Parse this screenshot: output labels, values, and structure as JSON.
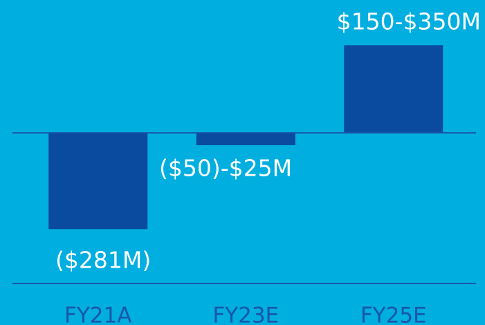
{
  "chart_data": {
    "type": "bar",
    "categories": [
      "FY21A",
      "FY23E",
      "FY25E"
    ],
    "values": [
      -281,
      -36,
      256
    ],
    "value_labels": [
      "($281M)",
      "($50)-$25M",
      "$150-$350M"
    ],
    "color": "#0a4a9f",
    "ylim": [
      -440,
      388
    ]
  }
}
